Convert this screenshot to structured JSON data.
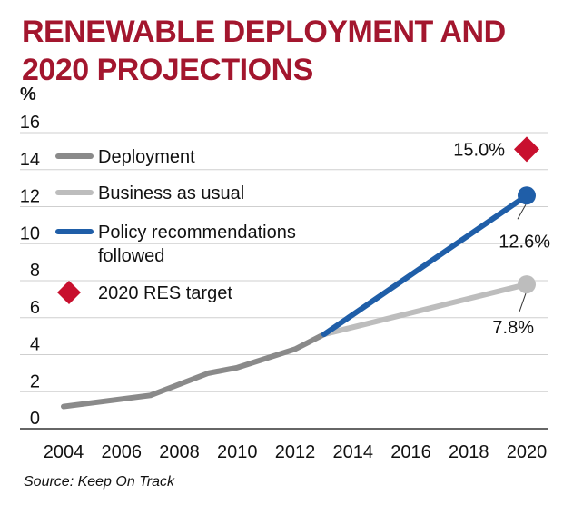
{
  "chart_data": {
    "type": "line",
    "title": [
      "RENEWABLE DEPLOYMENT AND",
      "2020 PROJECTIONS"
    ],
    "ylabel": "%",
    "xlabel": "",
    "ylim": [
      0,
      16
    ],
    "xlim": [
      2004,
      2020
    ],
    "yticks": [
      0,
      2,
      4,
      6,
      8,
      10,
      12,
      14,
      16
    ],
    "xticks": [
      2004,
      2006,
      2008,
      2010,
      2012,
      2014,
      2016,
      2018,
      2020
    ],
    "grid": "horizontal",
    "series": [
      {
        "name": "Deployment",
        "color": "#8a8a8a",
        "x": [
          2004,
          2007,
          2009,
          2010,
          2012,
          2013
        ],
        "y": [
          1.2,
          1.8,
          3.0,
          3.3,
          4.3,
          5.1
        ]
      },
      {
        "name": "Business as usual",
        "color": "#bdbdbd",
        "x": [
          2013,
          2020
        ],
        "y": [
          5.1,
          7.8
        ],
        "end_label": "7.8%"
      },
      {
        "name": "Policy recommendations followed",
        "legend_lines": [
          "Policy recommendations",
          "followed"
        ],
        "color": "#1f5ea8",
        "x": [
          2013,
          2020
        ],
        "y": [
          5.1,
          12.6
        ],
        "end_label": "12.6%"
      }
    ],
    "markers": [
      {
        "name": "2020 RES target",
        "shape": "diamond",
        "color": "#c8102e",
        "x": 2020,
        "y": 15.0,
        "label": "15.0%"
      }
    ],
    "legend_position": "top-left"
  },
  "source": "Source: Keep On Track"
}
